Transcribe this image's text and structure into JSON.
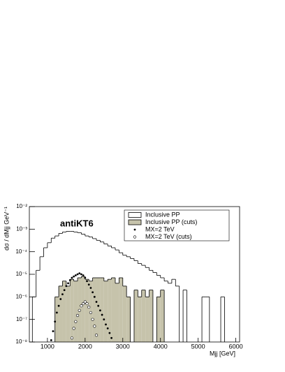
{
  "chart_data": {
    "type": "histogram",
    "annotation": "antiKT6",
    "xlabel": "Mjj [GeV]",
    "ylabel": "dσ / dMjj GeV⁻¹",
    "log_y": true,
    "legend": "top-right",
    "xlim": [
      520,
      6100
    ],
    "xticks": [
      1000,
      2000,
      3000,
      4000,
      5000,
      6000
    ],
    "ylim": [
      1e-08,
      0.01
    ],
    "yticks": [
      {
        "value": 1e-08,
        "label": "10⁻⁸"
      },
      {
        "value": 1e-07,
        "label": "10⁻⁷"
      },
      {
        "value": 1e-06,
        "label": "10⁻⁶"
      },
      {
        "value": 1e-05,
        "label": "10⁻⁵"
      },
      {
        "value": 0.0001,
        "label": "10⁻⁴"
      },
      {
        "value": 0.001,
        "label": "10⁻³"
      },
      {
        "value": 0.01,
        "label": "10⁻²"
      }
    ],
    "series": [
      {
        "name": "Inclusive PP",
        "type": "histogram",
        "color": "#000000",
        "fill": null,
        "bins": [
          600,
          700,
          800,
          900,
          1000,
          1100,
          1200,
          1300,
          1400,
          1500,
          1600,
          1700,
          1800,
          1900,
          2000,
          2100,
          2200,
          2300,
          2400,
          2500,
          2600,
          2700,
          2800,
          2900,
          3000,
          3100,
          3200,
          3300,
          3400,
          3500,
          3600,
          3700,
          3800,
          3900,
          4000,
          4100,
          4200,
          4300,
          4400,
          4500,
          4600,
          4700,
          4800,
          4900,
          5000,
          5100,
          5200,
          5300,
          5400,
          5500,
          5600,
          5700,
          5800
        ],
        "values": [
          1e-06,
          1.5e-05,
          6e-05,
          0.00015,
          0.00025,
          0.0004,
          0.0005,
          0.00065,
          0.00075,
          0.0008,
          0.0008,
          0.00075,
          0.0007,
          0.0006,
          0.0005,
          0.00045,
          0.00038,
          0.00032,
          0.00027,
          0.00022,
          0.00018,
          0.00015,
          0.00012,
          9e-05,
          7e-05,
          6e-05,
          5e-05,
          4e-05,
          3e-05,
          2.5e-05,
          2e-05,
          1.5e-05,
          1.2e-05,
          9e-06,
          7e-06,
          5e-06,
          4e-06,
          6e-06,
          3e-06,
          null,
          2e-06,
          null,
          null,
          null,
          null,
          1e-06,
          1e-06,
          null,
          null,
          null,
          1e-06,
          null
        ]
      },
      {
        "name": "Inclusive PP (cuts)",
        "type": "histogram",
        "color": "#000000",
        "fill": "#c6c3ab",
        "bins": [
          1200,
          1300,
          1400,
          1500,
          1600,
          1700,
          1800,
          1900,
          2000,
          2100,
          2200,
          2300,
          2400,
          2500,
          2600,
          2700,
          2800,
          2900,
          3000,
          3100,
          3200,
          3300,
          3400,
          3500,
          3600,
          3700,
          3800,
          3900,
          4000,
          4100
        ],
        "values": [
          1e-06,
          3e-06,
          5e-06,
          3e-06,
          6e-06,
          5e-06,
          7e-06,
          8e-06,
          6e-06,
          5e-06,
          7e-06,
          7e-06,
          7e-06,
          5e-06,
          6e-06,
          7e-06,
          4e-06,
          7e-06,
          3e-06,
          1e-06,
          null,
          2e-06,
          1e-06,
          2e-06,
          1e-06,
          2e-06,
          null,
          1e-06,
          2e-06
        ]
      },
      {
        "name": "MX=2 TeV",
        "type": "scatter",
        "color": "#000000",
        "marker": "filled",
        "x": [
          1100,
          1150,
          1200,
          1250,
          1300,
          1350,
          1400,
          1450,
          1500,
          1550,
          1600,
          1650,
          1700,
          1750,
          1800,
          1850,
          1900,
          1950,
          2000,
          2050,
          2100,
          2150,
          2200,
          2250,
          2300,
          2350,
          2400,
          2450,
          2500,
          2550,
          2600,
          2650,
          2700
        ],
        "values": [
          1.2e-08,
          3e-08,
          8e-08,
          2e-07,
          4e-07,
          8e-07,
          1.3e-06,
          2e-06,
          3e-06,
          4e-06,
          5.5e-06,
          7e-06,
          8e-06,
          9e-06,
          1e-05,
          1.1e-05,
          1e-05,
          9e-06,
          7e-06,
          5e-06,
          3.5e-06,
          2.5e-06,
          1.6e-06,
          1e-06,
          6e-07,
          4e-07,
          2.5e-07,
          1.6e-07,
          1e-07,
          6e-08,
          4e-08,
          2.5e-08,
          1.5e-08
        ]
      },
      {
        "name": "MX=2 TeV (cuts)",
        "type": "scatter",
        "color": "#000000",
        "marker": "open",
        "x": [
          1650,
          1700,
          1750,
          1800,
          1850,
          1900,
          1950,
          2000,
          2050,
          2100,
          2150,
          2200,
          2250,
          2300
        ],
        "values": [
          1.5e-08,
          4e-08,
          8e-08,
          1.5e-07,
          2.5e-07,
          4e-07,
          5e-07,
          6e-07,
          5e-07,
          3.5e-07,
          2e-07,
          1e-07,
          5e-08,
          2e-08
        ]
      }
    ]
  }
}
